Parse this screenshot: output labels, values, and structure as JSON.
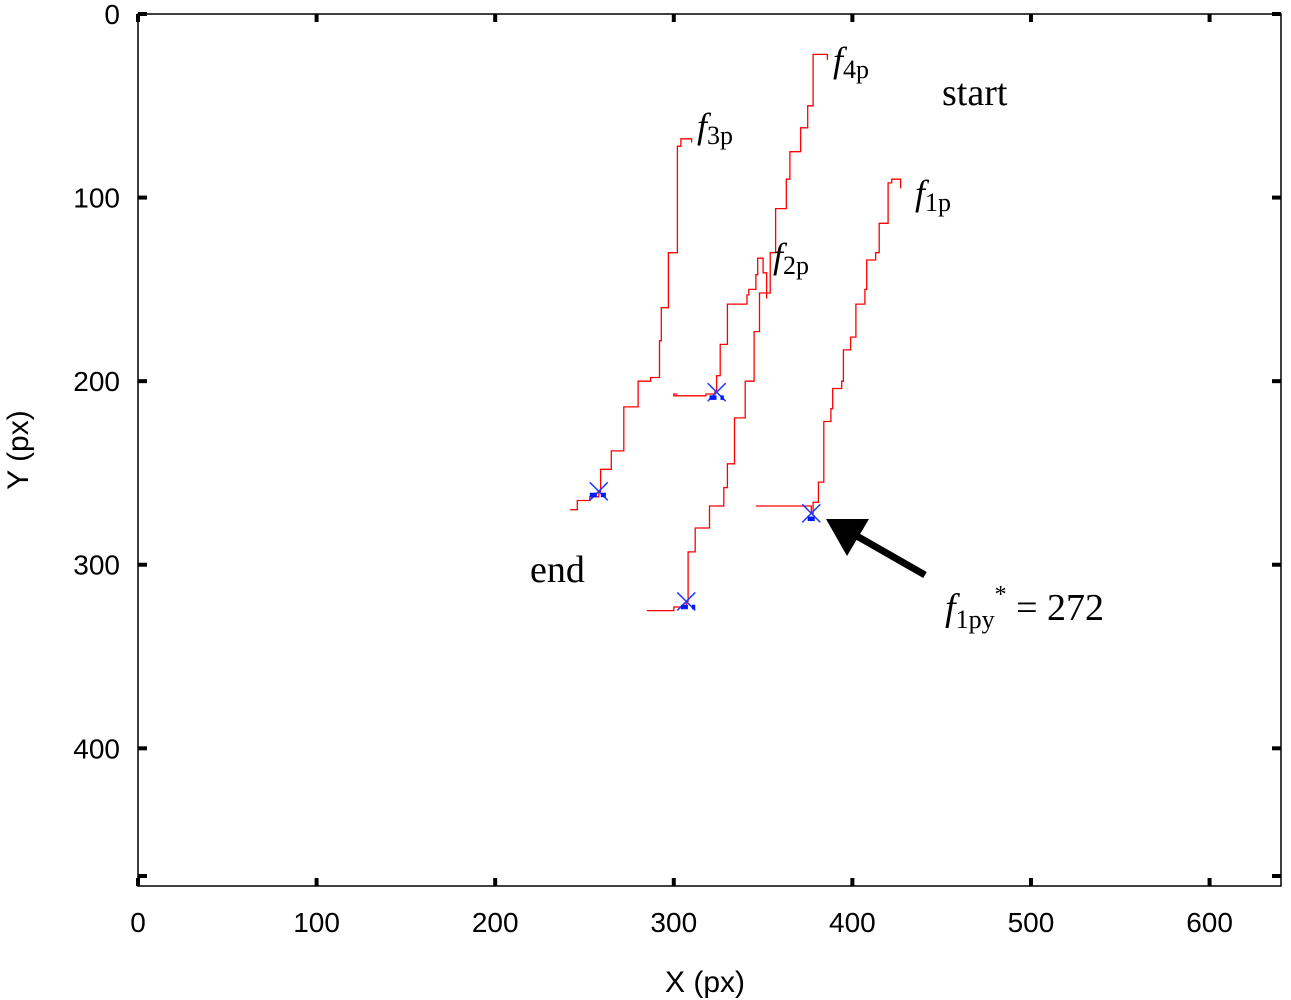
{
  "chart_data": {
    "type": "line",
    "xlabel": "X (px)",
    "ylabel": "Y (px)",
    "xlim": [
      0,
      640
    ],
    "ylim": [
      0,
      475
    ],
    "y_inverted": true,
    "grid": false,
    "xticks": [
      "0",
      "100",
      "200",
      "300",
      "400",
      "500",
      "600"
    ],
    "yticks": [
      "0",
      "100",
      "200",
      "300",
      "400"
    ],
    "series": [
      {
        "name": "f1p",
        "label_main": "f",
        "label_sub": "1p",
        "color": "#ff0000",
        "points": [
          [
            427,
            95
          ],
          [
            422,
            90
          ],
          [
            420,
            92
          ],
          [
            420,
            110
          ],
          [
            415,
            114
          ],
          [
            413,
            130
          ],
          [
            408,
            134
          ],
          [
            407,
            150
          ],
          [
            402,
            158
          ],
          [
            399,
            176
          ],
          [
            395,
            183
          ],
          [
            394,
            200
          ],
          [
            389,
            204
          ],
          [
            388,
            215
          ],
          [
            384,
            222
          ],
          [
            381,
            255
          ],
          [
            378,
            266
          ],
          [
            377,
            272
          ],
          [
            371,
            268
          ],
          [
            346,
            268
          ]
        ],
        "marker": [
          377,
          272
        ],
        "bar": [
          375,
          381,
          275
        ]
      },
      {
        "name": "f2p",
        "label_main": "f",
        "label_sub": "2p",
        "color": "#ff0000",
        "points": [
          [
            352,
            155
          ],
          [
            350,
            141
          ],
          [
            347,
            133
          ],
          [
            346,
            142
          ],
          [
            342,
            150
          ],
          [
            341,
            153
          ],
          [
            330,
            158
          ],
          [
            326,
            180
          ],
          [
            324,
            197
          ],
          [
            323,
            206
          ],
          [
            318,
            207
          ],
          [
            300,
            208
          ],
          [
            302,
            207
          ]
        ],
        "marker": [
          324,
          206
        ],
        "bar": [
          320,
          328,
          209
        ]
      },
      {
        "name": "f3p",
        "label_main": "f",
        "label_sub": "3p",
        "color": "#ff0000",
        "points": [
          [
            310,
            70
          ],
          [
            304,
            68
          ],
          [
            302,
            72
          ],
          [
            302,
            105
          ],
          [
            297,
            130
          ],
          [
            293,
            160
          ],
          [
            292,
            178
          ],
          [
            287,
            198
          ],
          [
            280,
            200
          ],
          [
            272,
            214
          ],
          [
            265,
            238
          ],
          [
            259,
            248
          ],
          [
            258,
            260
          ],
          [
            253,
            263
          ],
          [
            246,
            265
          ],
          [
            242,
            270
          ]
        ],
        "marker": [
          258,
          260
        ],
        "bar": [
          253,
          262,
          262
        ]
      },
      {
        "name": "f4p",
        "label_main": "f",
        "label_sub": "4p",
        "color": "#ff0000",
        "points": [
          [
            386,
            25
          ],
          [
            380,
            22
          ],
          [
            378,
            22
          ],
          [
            378,
            35
          ],
          [
            375,
            50
          ],
          [
            371,
            62
          ],
          [
            365,
            75
          ],
          [
            363,
            90
          ],
          [
            357,
            106
          ],
          [
            354,
            130
          ],
          [
            348,
            152
          ],
          [
            345,
            173
          ],
          [
            340,
            200
          ],
          [
            334,
            220
          ],
          [
            330,
            245
          ],
          [
            328,
            258
          ],
          [
            320,
            268
          ],
          [
            312,
            280
          ],
          [
            308,
            293
          ],
          [
            307,
            320
          ],
          [
            300,
            323
          ],
          [
            285,
            325
          ]
        ],
        "marker": [
          307,
          320
        ],
        "bar": [
          304,
          312,
          323
        ]
      }
    ],
    "annotations": [
      {
        "name": "start",
        "text": "start"
      },
      {
        "name": "end",
        "text": "end"
      },
      {
        "name": "f1py",
        "main": "f",
        "sub": "1py",
        "sup": "*",
        "rest": " = 272"
      }
    ]
  }
}
